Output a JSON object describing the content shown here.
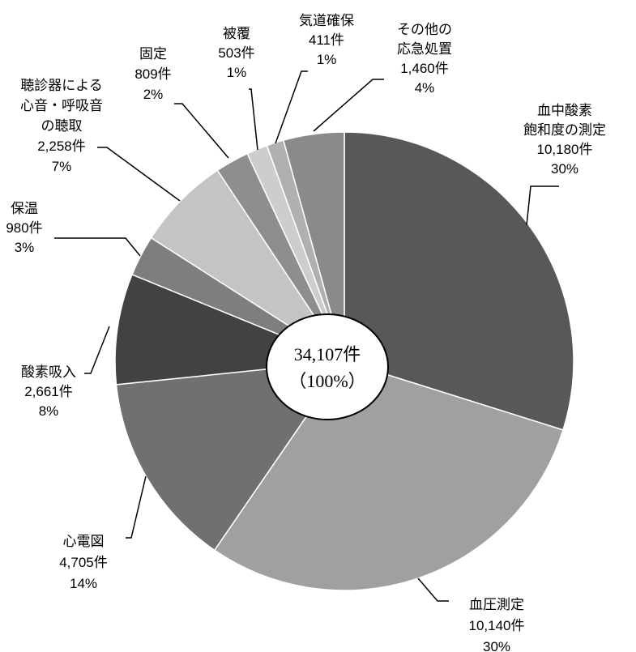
{
  "chart_data": {
    "type": "pie",
    "total_label": "34,107件",
    "total_pct": "（100%）",
    "slices": [
      {
        "lines": [
          "血中酸素",
          "飽和度の測定",
          "10,180件",
          "30%"
        ],
        "value": 10180,
        "color": "#585858"
      },
      {
        "lines": [
          "血圧測定",
          "10,140件",
          "30%"
        ],
        "value": 10140,
        "color": "#a0a0a0"
      },
      {
        "lines": [
          "心電図",
          "4,705件",
          "14%"
        ],
        "value": 4705,
        "color": "#707070"
      },
      {
        "lines": [
          "酸素吸入",
          "2,661件",
          "8%"
        ],
        "value": 2661,
        "color": "#424242"
      },
      {
        "lines": [
          "保温",
          "980件",
          "3%"
        ],
        "value": 980,
        "color": "#7e7e7e"
      },
      {
        "lines": [
          "聴診器による",
          "心音・呼吸音",
          "の聴取",
          "2,258件",
          "7%"
        ],
        "value": 2258,
        "color": "#c4c4c4"
      },
      {
        "lines": [
          "固定",
          "809件",
          "2%"
        ],
        "value": 809,
        "color": "#8e8e8e"
      },
      {
        "lines": [
          "被覆",
          "503件",
          "1%"
        ],
        "value": 503,
        "color": "#cdcdcd"
      },
      {
        "lines": [
          "気道確保",
          "411件",
          "1%"
        ],
        "value": 411,
        "color": "#b0b0b0"
      },
      {
        "lines": [
          "その他の",
          "応急処置",
          "1,460件",
          "4%"
        ],
        "value": 1460,
        "color": "#8a8a8a"
      }
    ]
  }
}
